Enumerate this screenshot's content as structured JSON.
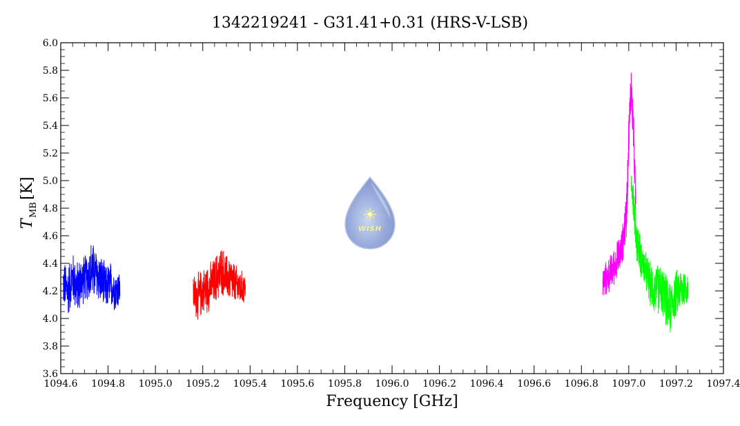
{
  "chart_data": {
    "type": "line",
    "title": "1342219241 - G31.41+0.31 (HRS-V-LSB)",
    "xlabel": "Frequency [GHz]",
    "ylabel_symbol": "T",
    "ylabel_subscript": "MB",
    "ylabel_unit": "[K]",
    "xlim": [
      1094.6,
      1097.4
    ],
    "ylim": [
      3.6,
      6.0
    ],
    "x_ticks": [
      "1094.6",
      "1094.8",
      "1095.0",
      "1095.2",
      "1095.4",
      "1095.6",
      "1095.8",
      "1096.0",
      "1096.2",
      "1096.4",
      "1096.6",
      "1096.8",
      "1097.0",
      "1097.2",
      "1097.4"
    ],
    "y_ticks": [
      "3.6",
      "3.8",
      "4.0",
      "4.2",
      "4.4",
      "4.6",
      "4.8",
      "5.0",
      "5.2",
      "5.4",
      "5.6",
      "5.8",
      "6.0"
    ],
    "grid": false,
    "logo_text": "WISH",
    "series": [
      {
        "color": "#0000ff",
        "x": [
          1094.61,
          1094.63,
          1094.65,
          1094.67,
          1094.69,
          1094.71,
          1094.73,
          1094.75,
          1094.77,
          1094.79,
          1094.81,
          1094.83,
          1094.85
        ],
        "y": [
          4.25,
          4.2,
          4.3,
          4.22,
          4.28,
          4.3,
          4.35,
          4.32,
          4.28,
          4.22,
          4.25,
          4.2,
          4.22
        ],
        "spread": [
          0.18,
          0.22,
          0.2,
          0.22,
          0.2,
          0.18,
          0.25,
          0.2,
          0.2,
          0.18,
          0.18,
          0.16,
          0.15
        ]
      },
      {
        "color": "#ff0000",
        "x": [
          1095.16,
          1095.18,
          1095.2,
          1095.22,
          1095.24,
          1095.26,
          1095.28,
          1095.3,
          1095.32,
          1095.34,
          1095.36,
          1095.38
        ],
        "y": [
          4.18,
          4.15,
          4.2,
          4.22,
          4.25,
          4.3,
          4.35,
          4.3,
          4.28,
          4.24,
          4.22,
          4.22
        ],
        "spread": [
          0.15,
          0.2,
          0.18,
          0.2,
          0.18,
          0.2,
          0.2,
          0.18,
          0.18,
          0.16,
          0.14,
          0.12
        ]
      },
      {
        "color": "#ff00ff",
        "x": [
          1096.89,
          1096.91,
          1096.93,
          1096.95,
          1096.97,
          1096.99,
          1097.0,
          1097.01,
          1097.02,
          1097.03
        ],
        "y": [
          4.25,
          4.3,
          4.35,
          4.42,
          4.5,
          4.75,
          5.3,
          5.7,
          5.35,
          4.8
        ],
        "spread": [
          0.14,
          0.14,
          0.15,
          0.15,
          0.15,
          0.2,
          0.22,
          0.22,
          0.2,
          0.16
        ]
      },
      {
        "color": "#00ff00",
        "x": [
          1097.01,
          1097.02,
          1097.03,
          1097.05,
          1097.07,
          1097.09,
          1097.11,
          1097.13,
          1097.15,
          1097.17,
          1097.19,
          1097.21,
          1097.23,
          1097.25
        ],
        "y": [
          5.05,
          4.85,
          4.6,
          4.45,
          4.35,
          4.25,
          4.2,
          4.22,
          4.18,
          4.05,
          4.15,
          4.2,
          4.22,
          4.22
        ],
        "spread": [
          0.15,
          0.18,
          0.18,
          0.16,
          0.16,
          0.18,
          0.2,
          0.2,
          0.2,
          0.22,
          0.2,
          0.18,
          0.18,
          0.12
        ]
      }
    ]
  }
}
